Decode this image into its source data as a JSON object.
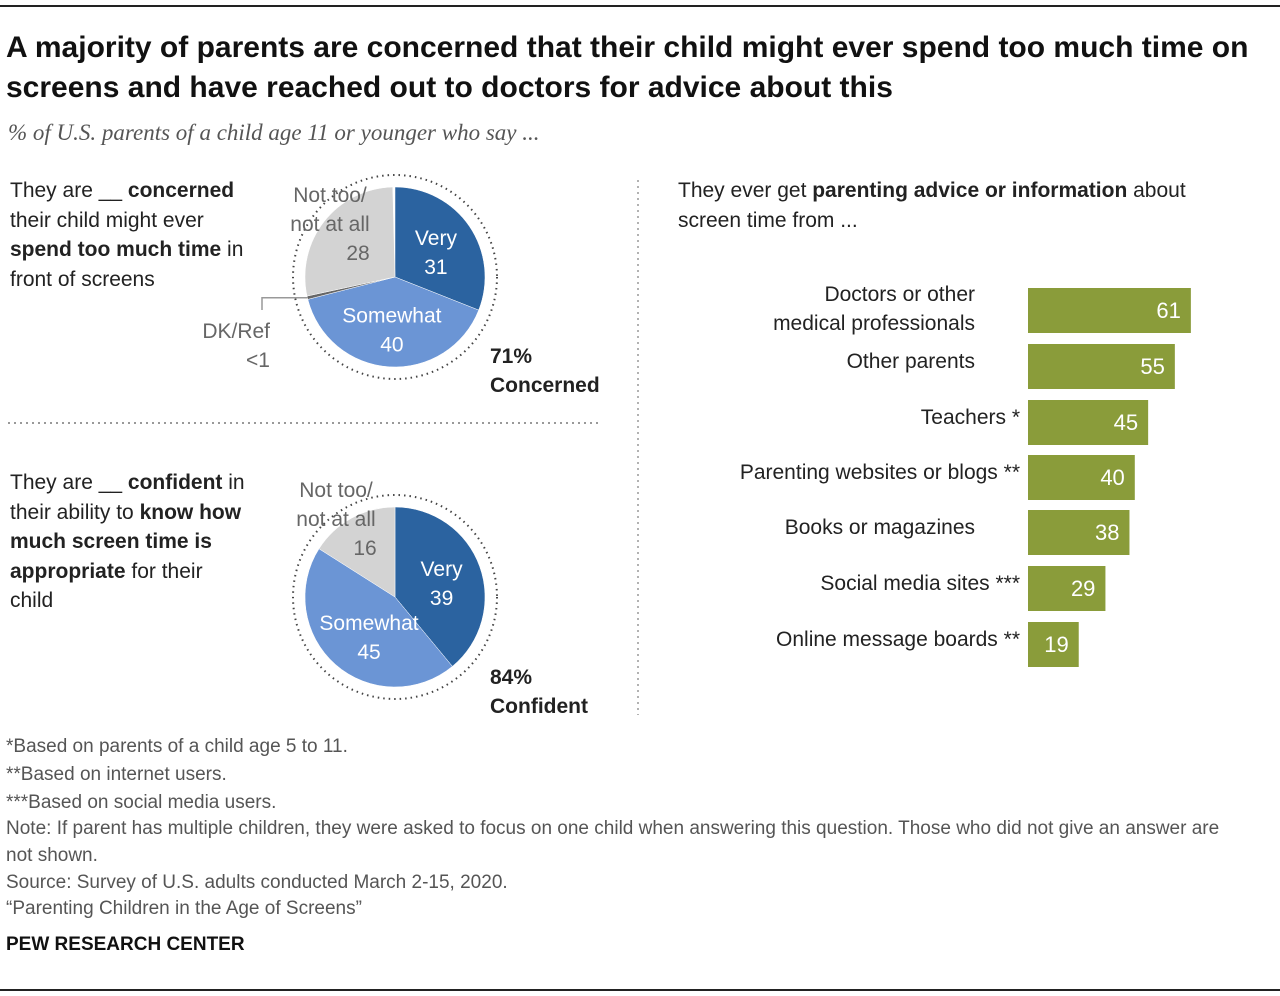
{
  "title": "A majority of parents are concerned that their child might ever spend too much time on screens and have reached out to doctors for advice about this",
  "subtitle": "% of U.S. parents of a child age 11 or younger who say ...",
  "colors": {
    "very": "#2b63a0",
    "somewhat": "#6b95d5",
    "not": "#d3d3d3",
    "dk": "#666666",
    "bar": "#8a9c3a"
  },
  "chart_data": [
    {
      "type": "pie",
      "question": {
        "p1": "They are __ ",
        "b1": "concerned",
        "p2": " their child might ever ",
        "b2": "spend too much time",
        "p3": " in front of screens"
      },
      "slices": [
        {
          "label": "Very",
          "value": 31
        },
        {
          "label": "Somewhat",
          "value": 40
        },
        {
          "label": "DK/Ref",
          "value": "<1"
        },
        {
          "label": "Not too/ not at all",
          "value": 28
        }
      ],
      "total_pct": "71%",
      "total_label": "Concerned"
    },
    {
      "type": "pie",
      "question": {
        "p1": "They are __ ",
        "b1": "confident",
        "p2": " in their ability to ",
        "b2": "know how much screen time is appropriate",
        "p3": " for their child"
      },
      "slices": [
        {
          "label": "Very",
          "value": 39
        },
        {
          "label": "Somewhat",
          "value": 45
        },
        {
          "label": "Not too/ not at all",
          "value": 16
        }
      ],
      "total_pct": "84%",
      "total_label": "Confident"
    },
    {
      "type": "bar",
      "title": {
        "p1": "They ever get ",
        "b1": "parenting advice or information",
        "p2": " about screen time from ..."
      },
      "categories": [
        "Doctors or other medical professionals",
        "Other parents",
        "Teachers *",
        "Parenting websites or blogs **",
        "Books or magazines",
        "Social media sites ***",
        "Online message boards **"
      ],
      "values": [
        61,
        55,
        45,
        40,
        38,
        29,
        19
      ]
    }
  ],
  "footnotes": [
    "*Based on parents of a child age 5 to 11.",
    "**Based on internet users.",
    "***Based on social media users.",
    "Note: If parent has multiple children, they were asked to focus on one child when answering this question. Those who did not give an answer are not shown.",
    "Source: Survey of U.S. adults conducted March 2-15, 2020.",
    "“Parenting Children in the Age of Screens”"
  ],
  "brand": "PEW RESEARCH CENTER"
}
